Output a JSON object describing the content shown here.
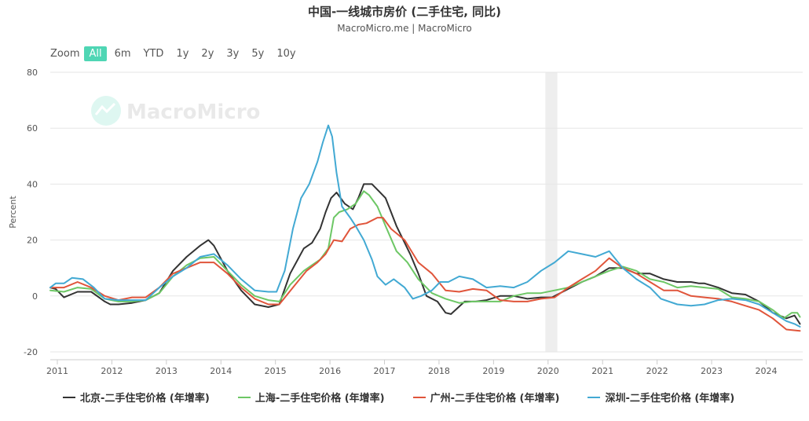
{
  "header": {
    "title": "中国-一线城市房价 (二手住宅, 同比)",
    "subtitle": "MacroMicro.me | MacroMicro"
  },
  "range_selector": {
    "zoom_label": "Zoom",
    "buttons": [
      "All",
      "6m",
      "YTD",
      "1y",
      "2y",
      "3y",
      "5y",
      "10y"
    ],
    "active": "All"
  },
  "watermark": "MacroMicro",
  "chart_data": {
    "type": "line",
    "ylabel": "Percent",
    "ylim": [
      -20,
      80
    ],
    "yticks": [
      -20,
      0,
      20,
      40,
      60,
      80
    ],
    "xlim": [
      2011,
      2024.8
    ],
    "xticks": [
      2011,
      2012,
      2013,
      2014,
      2015,
      2016,
      2017,
      2018,
      2019,
      2020,
      2021,
      2022,
      2023,
      2024
    ],
    "grid": true,
    "legend_position": "bottom",
    "shaded_band": [
      2020.08,
      2020.3
    ],
    "series": [
      {
        "name": "北京-二手住宅价格 (年增率)",
        "color": "#333333",
        "x": [
          2011,
          2011.1,
          2011.25,
          2011.5,
          2011.75,
          2012,
          2012.1,
          2012.25,
          2012.5,
          2012.75,
          2013,
          2013.25,
          2013.5,
          2013.75,
          2013.9,
          2014,
          2014.25,
          2014.5,
          2014.75,
          2015,
          2015.2,
          2015.4,
          2015.65,
          2015.8,
          2015.95,
          2016.05,
          2016.15,
          2016.25,
          2016.4,
          2016.55,
          2016.65,
          2016.75,
          2016.9,
          2017.05,
          2017.15,
          2017.35,
          2017.6,
          2017.75,
          2017.9,
          2018.1,
          2018.25,
          2018.35,
          2018.6,
          2018.8,
          2019,
          2019.25,
          2019.5,
          2019.75,
          2020,
          2020.2,
          2020.5,
          2020.75,
          2021,
          2021.25,
          2021.5,
          2021.75,
          2022,
          2022.25,
          2022.5,
          2022.75,
          2022.9,
          2023,
          2023.25,
          2023.5,
          2023.75,
          2024,
          2024.25,
          2024.5,
          2024.65,
          2024.75
        ],
        "values": [
          3,
          2.5,
          -0.5,
          1.5,
          1.5,
          -2,
          -3,
          -3,
          -2.5,
          -1.5,
          1,
          9,
          14,
          18,
          20,
          18,
          9,
          2,
          -3,
          -4,
          -3,
          8,
          17,
          19,
          24,
          30,
          35,
          37,
          33,
          31,
          35,
          40,
          40,
          37,
          35,
          25,
          15,
          8,
          0,
          -2,
          -6,
          -6.5,
          -2,
          -2,
          -1.5,
          0,
          0,
          -1,
          -0.5,
          -0.5,
          2.5,
          5,
          7,
          10,
          10,
          8,
          8,
          6,
          5,
          5,
          4.5,
          4.5,
          3,
          1,
          0.5,
          -2,
          -6,
          -8,
          -7,
          -10
        ]
      },
      {
        "name": "上海-二手住宅价格 (年增率)",
        "color": "#6dc765",
        "x": [
          2011,
          2011.25,
          2011.5,
          2011.75,
          2012,
          2012.25,
          2012.5,
          2012.75,
          2013,
          2013.25,
          2013.5,
          2013.75,
          2014,
          2014.25,
          2014.5,
          2014.75,
          2015,
          2015.2,
          2015.4,
          2015.65,
          2015.8,
          2015.95,
          2016.1,
          2016.2,
          2016.3,
          2016.45,
          2016.6,
          2016.75,
          2016.85,
          2017,
          2017.15,
          2017.35,
          2017.55,
          2017.75,
          2018,
          2018.25,
          2018.5,
          2018.75,
          2019,
          2019.25,
          2019.5,
          2019.75,
          2020,
          2020.25,
          2020.5,
          2020.75,
          2021,
          2021.25,
          2021.5,
          2021.75,
          2022,
          2022.25,
          2022.5,
          2022.75,
          2023,
          2023.25,
          2023.5,
          2023.75,
          2024,
          2024.25,
          2024.45,
          2024.6,
          2024.7,
          2024.75
        ],
        "values": [
          2,
          1.5,
          3,
          2.5,
          -1,
          -2,
          -2,
          -1.5,
          1,
          7,
          11,
          13.5,
          14,
          9,
          4,
          0,
          -1.5,
          -2,
          4,
          9,
          11,
          13,
          17,
          28,
          30,
          31,
          33,
          37.5,
          36,
          32,
          25,
          16,
          12,
          6,
          1,
          -1,
          -2.5,
          -2,
          -2,
          -2,
          0,
          1,
          1,
          2,
          3,
          5,
          7,
          9,
          10.5,
          9,
          6,
          5,
          3,
          3.5,
          3,
          2.5,
          -0.5,
          -1,
          -2,
          -5,
          -8,
          -6,
          -6,
          -7.5
        ]
      },
      {
        "name": "广州-二手住宅价格 (年增率)",
        "color": "#e0553b",
        "x": [
          2011,
          2011.25,
          2011.5,
          2011.75,
          2012,
          2012.25,
          2012.5,
          2012.75,
          2013,
          2013.25,
          2013.5,
          2013.75,
          2014,
          2014.25,
          2014.5,
          2014.75,
          2015,
          2015.2,
          2015.45,
          2015.7,
          2015.9,
          2016.05,
          2016.2,
          2016.35,
          2016.5,
          2016.65,
          2016.8,
          2017,
          2017.1,
          2017.25,
          2017.5,
          2017.75,
          2018,
          2018.25,
          2018.5,
          2018.75,
          2019,
          2019.25,
          2019.5,
          2019.75,
          2020,
          2020.25,
          2020.5,
          2020.75,
          2021,
          2021.25,
          2021.5,
          2021.75,
          2022,
          2022.25,
          2022.5,
          2022.75,
          2023,
          2023.25,
          2023.5,
          2023.75,
          2024,
          2024.25,
          2024.5,
          2024.75
        ],
        "values": [
          3,
          3,
          5,
          3,
          0,
          -1.5,
          -0.5,
          -0.5,
          3,
          8,
          10,
          12,
          12,
          8,
          3,
          -1,
          -3,
          -3,
          3,
          9,
          12,
          15,
          20,
          19.5,
          24,
          25.5,
          26,
          28,
          28,
          24,
          20,
          12,
          8,
          2,
          1.5,
          2.5,
          2,
          -1.5,
          -2,
          -2,
          -1,
          -0.5,
          3,
          6,
          9,
          13.5,
          10,
          8,
          5,
          2,
          2,
          0,
          -0.5,
          -1,
          -2,
          -3.5,
          -5,
          -8,
          -12,
          -12.5
        ]
      },
      {
        "name": "深圳-二手住宅价格 (年增率)",
        "color": "#42a9d3",
        "x": [
          2011,
          2011.1,
          2011.25,
          2011.4,
          2011.6,
          2011.8,
          2012,
          2012.25,
          2012.5,
          2012.75,
          2013,
          2013.25,
          2013.5,
          2013.75,
          2014,
          2014.25,
          2014.5,
          2014.75,
          2015,
          2015.15,
          2015.3,
          2015.45,
          2015.6,
          2015.75,
          2015.9,
          2016,
          2016.1,
          2016.17,
          2016.25,
          2016.35,
          2016.5,
          2016.6,
          2016.75,
          2016.9,
          2017,
          2017.15,
          2017.3,
          2017.5,
          2017.65,
          2017.8,
          2018,
          2018.15,
          2018.3,
          2018.5,
          2018.75,
          2019,
          2019.25,
          2019.5,
          2019.75,
          2020,
          2020.25,
          2020.5,
          2020.75,
          2021,
          2021.25,
          2021.5,
          2021.75,
          2022,
          2022.2,
          2022.5,
          2022.75,
          2023,
          2023.25,
          2023.5,
          2023.75,
          2024,
          2024.25,
          2024.5,
          2024.65,
          2024.75
        ],
        "values": [
          3,
          4.5,
          4.5,
          6.5,
          6,
          3,
          -1,
          -1.5,
          -1.5,
          -1.5,
          3,
          7,
          10,
          14,
          15,
          11,
          6,
          2,
          1.5,
          1.5,
          9,
          24,
          35,
          40,
          48,
          55,
          61,
          57,
          44,
          32,
          28,
          25,
          20,
          13,
          7,
          4,
          6,
          3,
          -1,
          0,
          2,
          5,
          5,
          7,
          6,
          3,
          3.5,
          3,
          5,
          9,
          12,
          16,
          15,
          14,
          16,
          10,
          6,
          3,
          -1,
          -3,
          -3.5,
          -3,
          -1.5,
          -1,
          -1.5,
          -3,
          -6,
          -9,
          -10,
          -11
        ]
      }
    ]
  }
}
